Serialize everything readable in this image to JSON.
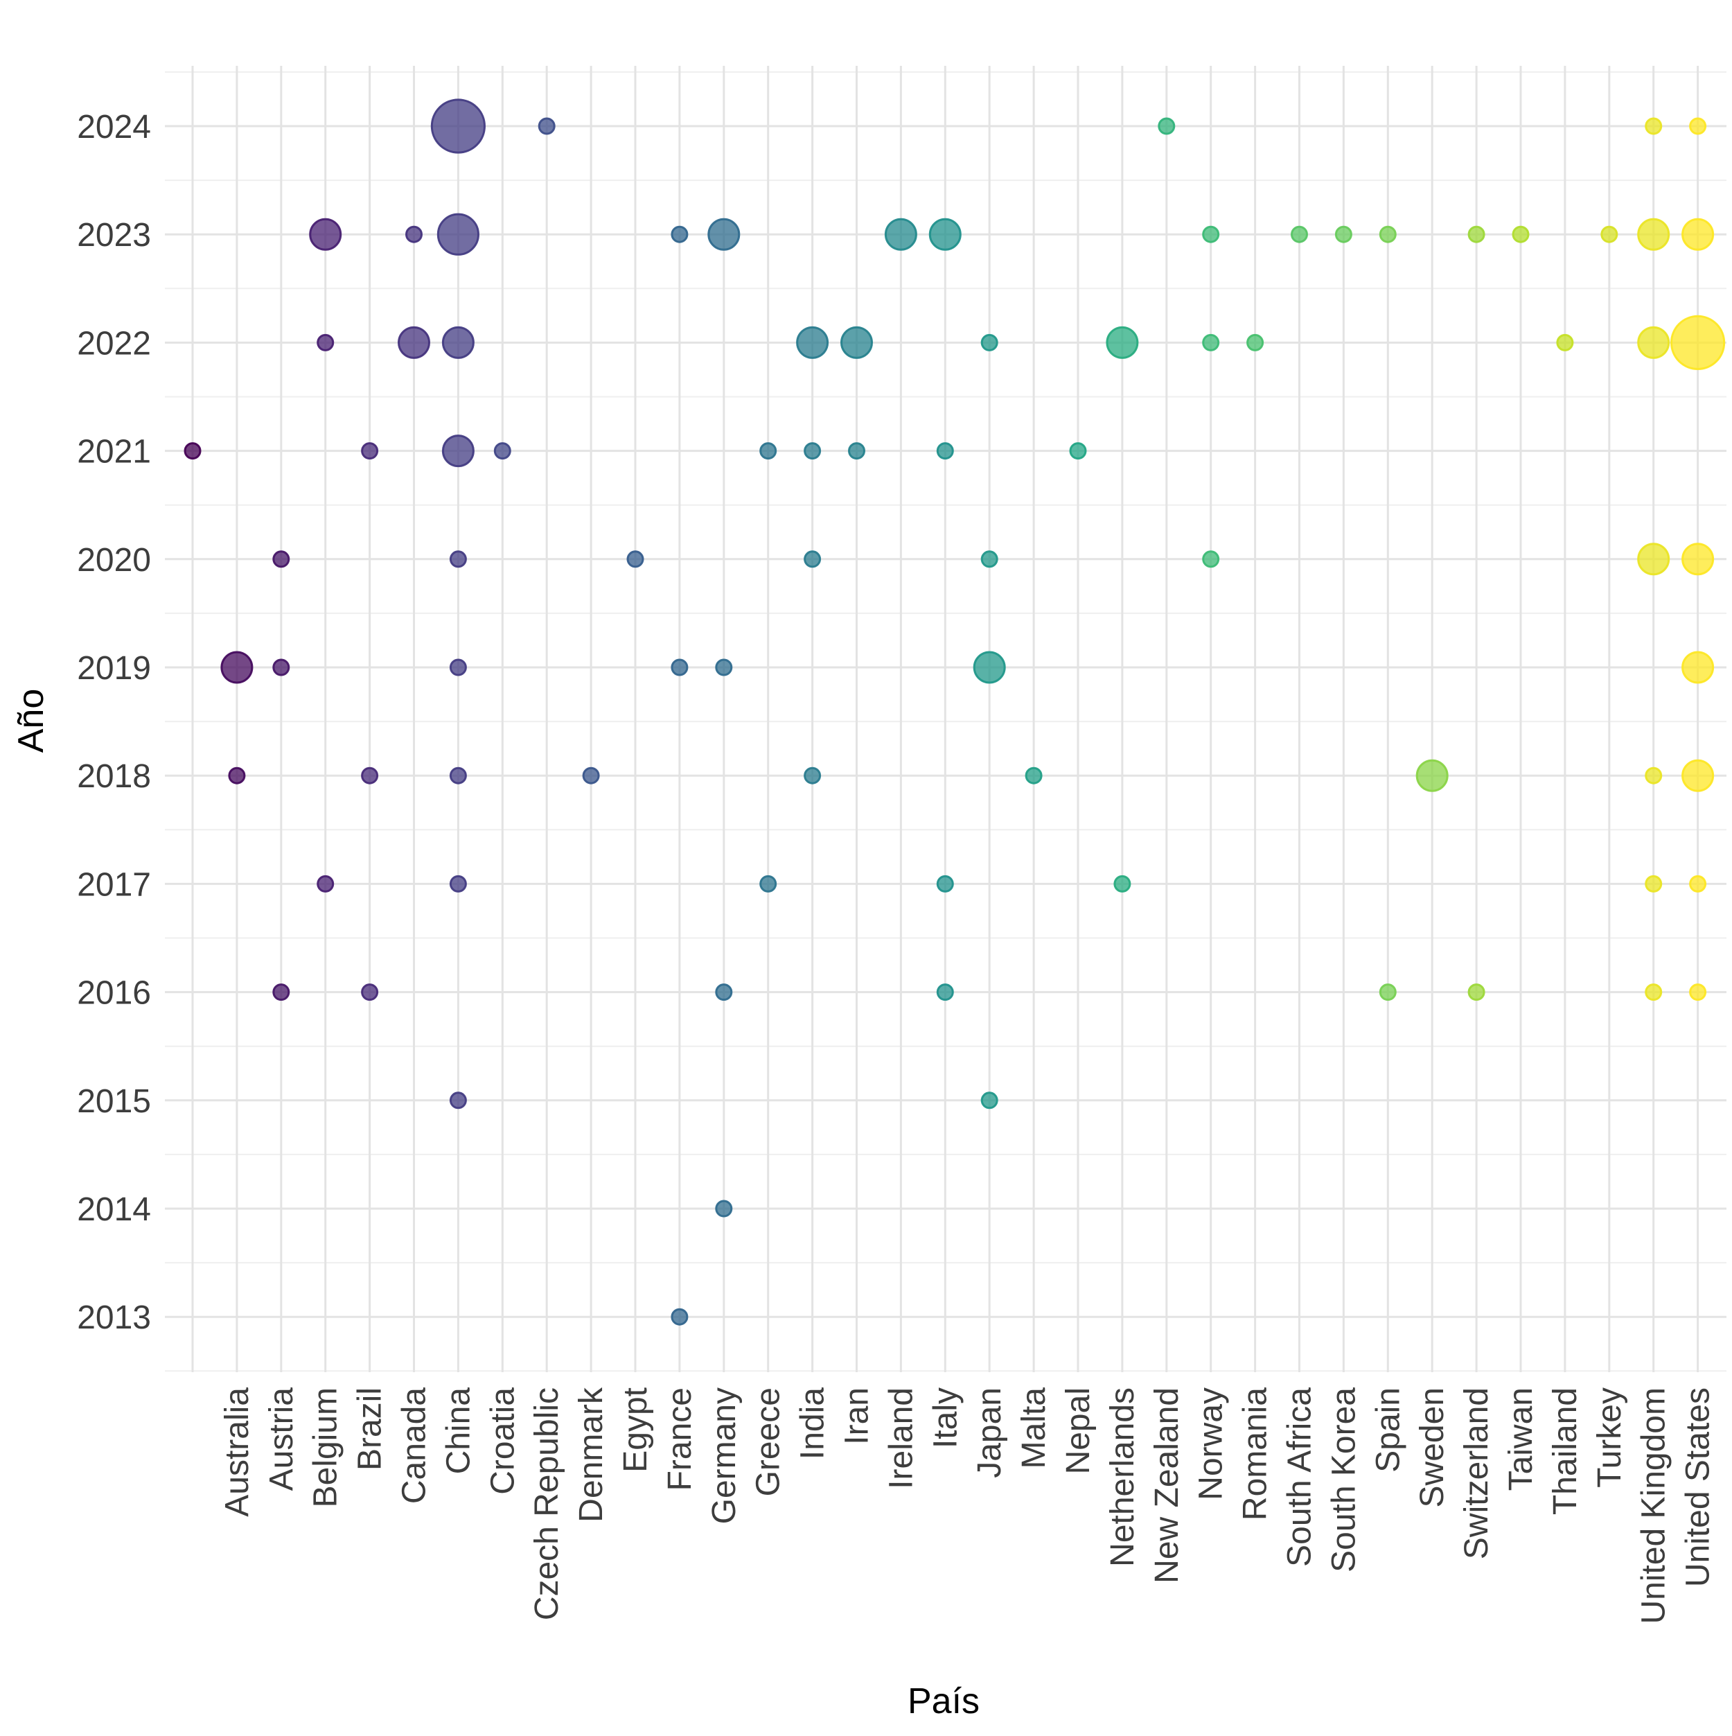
{
  "chart_data": {
    "type": "scatter",
    "subtype": "bubble",
    "xlabel": "País",
    "ylabel": "Año",
    "grid": true,
    "legend": "none",
    "categories": [
      "",
      "Australia",
      "Austria",
      "Belgium",
      "Brazil",
      "Canada",
      "China",
      "Croatia",
      "Czech Republic",
      "Denmark",
      "Egypt",
      "France",
      "Germany",
      "Greece",
      "India",
      "Iran",
      "Ireland",
      "Italy",
      "Japan",
      "Malta",
      "Nepal",
      "Netherlands",
      "New Zealand",
      "Norway",
      "Romania",
      "South Africa",
      "South Korea",
      "Spain",
      "Sweden",
      "Switzerland",
      "Taiwan",
      "Thailand",
      "Turkey",
      "United Kingdom",
      "United States"
    ],
    "y_ticks": [
      2013,
      2014,
      2015,
      2016,
      2017,
      2018,
      2019,
      2020,
      2021,
      2022,
      2023,
      2024
    ],
    "ylim": [
      2012.5,
      2024.5
    ],
    "size_note": "bubble size = count of items",
    "points": [
      {
        "x": "",
        "y": 2021,
        "size": 1
      },
      {
        "x": "Australia",
        "y": 2018,
        "size": 1
      },
      {
        "x": "Australia",
        "y": 2019,
        "size": 4
      },
      {
        "x": "Austria",
        "y": 2016,
        "size": 1
      },
      {
        "x": "Austria",
        "y": 2019,
        "size": 1
      },
      {
        "x": "Austria",
        "y": 2020,
        "size": 1
      },
      {
        "x": "Belgium",
        "y": 2017,
        "size": 1
      },
      {
        "x": "Belgium",
        "y": 2022,
        "size": 1
      },
      {
        "x": "Belgium",
        "y": 2023,
        "size": 4
      },
      {
        "x": "Brazil",
        "y": 2016,
        "size": 1
      },
      {
        "x": "Brazil",
        "y": 2018,
        "size": 1
      },
      {
        "x": "Brazil",
        "y": 2021,
        "size": 1
      },
      {
        "x": "Canada",
        "y": 2022,
        "size": 4
      },
      {
        "x": "Canada",
        "y": 2023,
        "size": 1
      },
      {
        "x": "China",
        "y": 2015,
        "size": 1
      },
      {
        "x": "China",
        "y": 2017,
        "size": 1
      },
      {
        "x": "China",
        "y": 2018,
        "size": 1
      },
      {
        "x": "China",
        "y": 2019,
        "size": 1
      },
      {
        "x": "China",
        "y": 2020,
        "size": 1
      },
      {
        "x": "China",
        "y": 2021,
        "size": 4
      },
      {
        "x": "China",
        "y": 2022,
        "size": 4
      },
      {
        "x": "China",
        "y": 2023,
        "size": 7
      },
      {
        "x": "China",
        "y": 2024,
        "size": 12
      },
      {
        "x": "Croatia",
        "y": 2021,
        "size": 1
      },
      {
        "x": "Czech Republic",
        "y": 2024,
        "size": 1
      },
      {
        "x": "Denmark",
        "y": 2018,
        "size": 1
      },
      {
        "x": "Egypt",
        "y": 2020,
        "size": 1
      },
      {
        "x": "France",
        "y": 2013,
        "size": 1
      },
      {
        "x": "France",
        "y": 2019,
        "size": 1
      },
      {
        "x": "France",
        "y": 2023,
        "size": 1
      },
      {
        "x": "Germany",
        "y": 2014,
        "size": 1
      },
      {
        "x": "Germany",
        "y": 2016,
        "size": 1
      },
      {
        "x": "Germany",
        "y": 2019,
        "size": 1
      },
      {
        "x": "Germany",
        "y": 2023,
        "size": 4
      },
      {
        "x": "Greece",
        "y": 2017,
        "size": 1
      },
      {
        "x": "Greece",
        "y": 2021,
        "size": 1
      },
      {
        "x": "India",
        "y": 2018,
        "size": 1
      },
      {
        "x": "India",
        "y": 2020,
        "size": 1
      },
      {
        "x": "India",
        "y": 2021,
        "size": 1
      },
      {
        "x": "India",
        "y": 2022,
        "size": 4
      },
      {
        "x": "Iran",
        "y": 2021,
        "size": 1
      },
      {
        "x": "Iran",
        "y": 2022,
        "size": 4
      },
      {
        "x": "Ireland",
        "y": 2023,
        "size": 4
      },
      {
        "x": "Italy",
        "y": 2016,
        "size": 1
      },
      {
        "x": "Italy",
        "y": 2017,
        "size": 1
      },
      {
        "x": "Italy",
        "y": 2021,
        "size": 1
      },
      {
        "x": "Italy",
        "y": 2023,
        "size": 4
      },
      {
        "x": "Japan",
        "y": 2015,
        "size": 1
      },
      {
        "x": "Japan",
        "y": 2019,
        "size": 4
      },
      {
        "x": "Japan",
        "y": 2020,
        "size": 1
      },
      {
        "x": "Japan",
        "y": 2022,
        "size": 1
      },
      {
        "x": "Malta",
        "y": 2018,
        "size": 1
      },
      {
        "x": "Nepal",
        "y": 2021,
        "size": 1
      },
      {
        "x": "Netherlands",
        "y": 2017,
        "size": 1
      },
      {
        "x": "Netherlands",
        "y": 2022,
        "size": 4
      },
      {
        "x": "New Zealand",
        "y": 2024,
        "size": 1
      },
      {
        "x": "Norway",
        "y": 2020,
        "size": 1
      },
      {
        "x": "Norway",
        "y": 2022,
        "size": 1
      },
      {
        "x": "Norway",
        "y": 2023,
        "size": 1
      },
      {
        "x": "Romania",
        "y": 2022,
        "size": 1
      },
      {
        "x": "South Africa",
        "y": 2023,
        "size": 1
      },
      {
        "x": "South Korea",
        "y": 2023,
        "size": 1
      },
      {
        "x": "Spain",
        "y": 2016,
        "size": 1
      },
      {
        "x": "Spain",
        "y": 2023,
        "size": 1
      },
      {
        "x": "Sweden",
        "y": 2018,
        "size": 4
      },
      {
        "x": "Switzerland",
        "y": 2016,
        "size": 1
      },
      {
        "x": "Switzerland",
        "y": 2023,
        "size": 1
      },
      {
        "x": "Taiwan",
        "y": 2023,
        "size": 1
      },
      {
        "x": "Thailand",
        "y": 2022,
        "size": 1
      },
      {
        "x": "Turkey",
        "y": 2023,
        "size": 1
      },
      {
        "x": "United Kingdom",
        "y": 2016,
        "size": 1
      },
      {
        "x": "United Kingdom",
        "y": 2017,
        "size": 1
      },
      {
        "x": "United Kingdom",
        "y": 2018,
        "size": 1
      },
      {
        "x": "United Kingdom",
        "y": 2020,
        "size": 4
      },
      {
        "x": "United Kingdom",
        "y": 2022,
        "size": 4
      },
      {
        "x": "United Kingdom",
        "y": 2023,
        "size": 4
      },
      {
        "x": "United Kingdom",
        "y": 2024,
        "size": 1
      },
      {
        "x": "United States",
        "y": 2016,
        "size": 1
      },
      {
        "x": "United States",
        "y": 2017,
        "size": 1
      },
      {
        "x": "United States",
        "y": 2018,
        "size": 4
      },
      {
        "x": "United States",
        "y": 2019,
        "size": 4
      },
      {
        "x": "United States",
        "y": 2020,
        "size": 4
      },
      {
        "x": "United States",
        "y": 2022,
        "size": 12
      },
      {
        "x": "United States",
        "y": 2023,
        "size": 4
      },
      {
        "x": "United States",
        "y": 2024,
        "size": 1
      }
    ],
    "colormap": "viridis",
    "colors": {
      "background": "#ffffff",
      "grid": "#e3e3e3",
      "tick_text": "#3d3d3d",
      "palette_start": "#440154",
      "palette_end": "#fde725"
    },
    "point_opacity": 0.75
  }
}
